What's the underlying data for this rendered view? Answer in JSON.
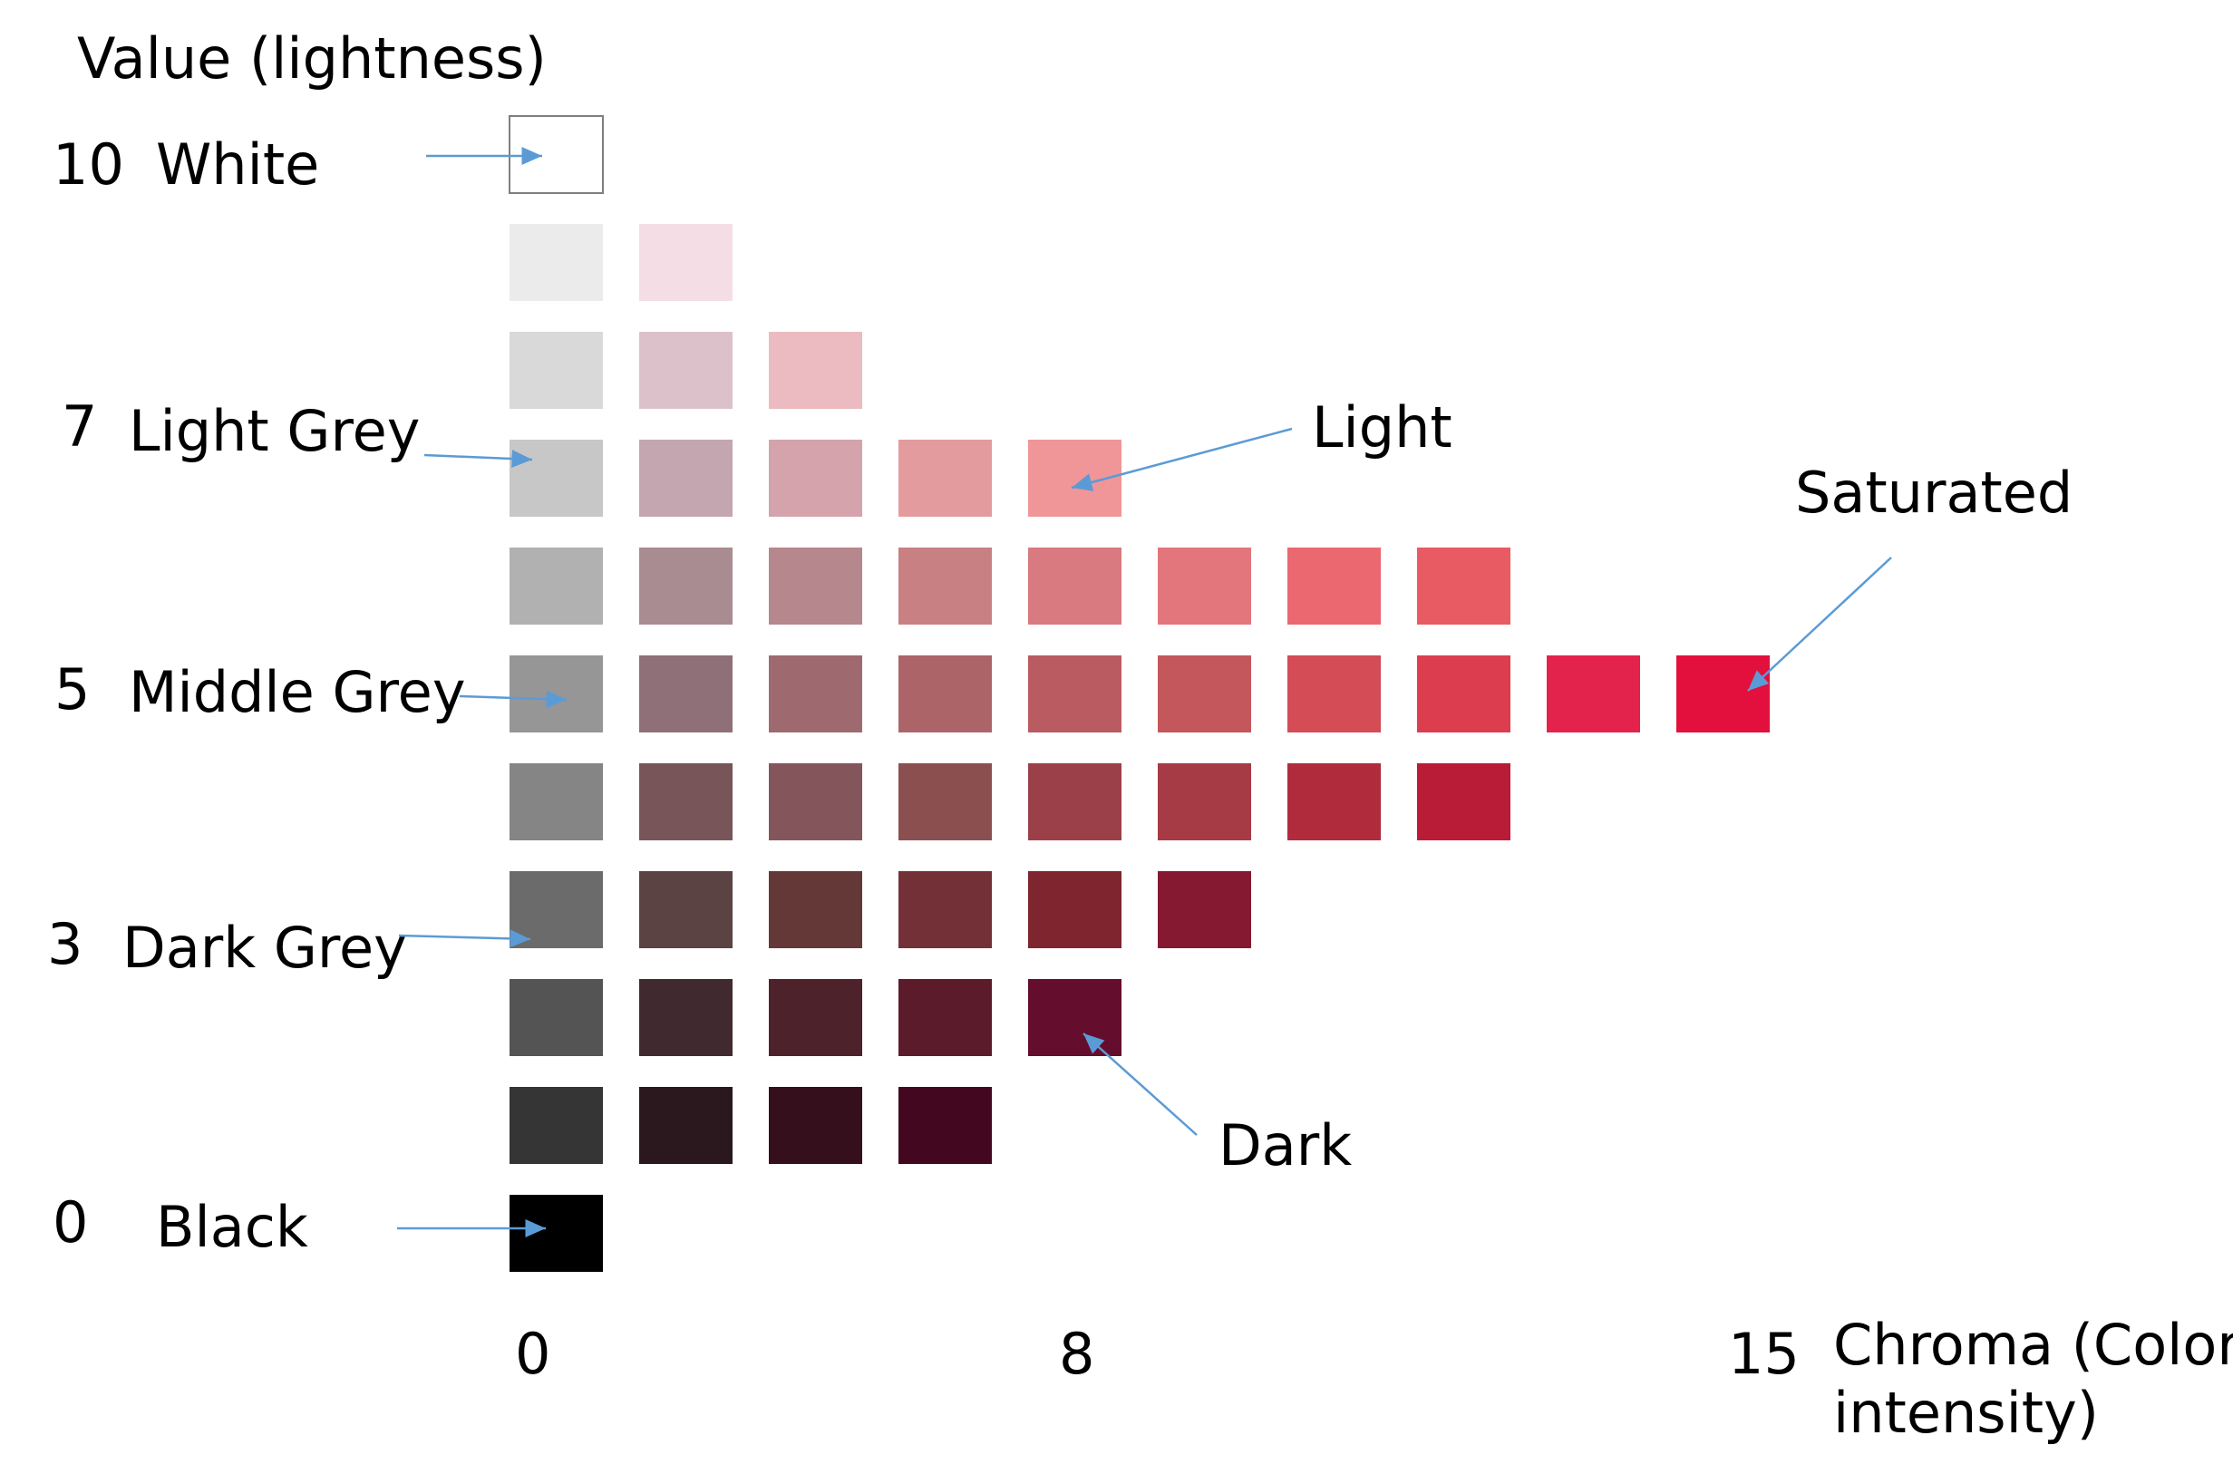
{
  "y_axis_title": "Value (lightness)",
  "x_axis_title_line1": "Chroma (Color",
  "x_axis_title_line2": "intensity)",
  "value_labels": [
    {
      "number": "10",
      "name": "White"
    },
    {
      "number": "7",
      "name": "Light Grey"
    },
    {
      "number": "5",
      "name": "Middle Grey"
    },
    {
      "number": "3",
      "name": "Dark Grey"
    },
    {
      "number": "0",
      "name": "Black"
    }
  ],
  "chroma_ticks": [
    "0",
    "8",
    "15"
  ],
  "annotations": {
    "light": "Light",
    "saturated": "Saturated",
    "dark": "Dark"
  },
  "colors": {
    "arrow": "#5b9bd5"
  },
  "swatch_rows": [
    {
      "value": 10,
      "colors": [
        "#ffffff"
      ]
    },
    {
      "value": 9,
      "colors": [
        "#ebebeb",
        "#f5dde6"
      ]
    },
    {
      "value": 8,
      "colors": [
        "#d9d9d9",
        "#dcc1cb",
        "#ecbac1"
      ]
    },
    {
      "value": 7,
      "colors": [
        "#c7c7c7",
        "#c3a6af",
        "#d4a3ab",
        "#e39b9e",
        "#f09598"
      ]
    },
    {
      "value": 6,
      "colors": [
        "#b1b1b1",
        "#a98c91",
        "#b6878d",
        "#c98083",
        "#d87a7f",
        "#e2767c",
        "#ec6870",
        "#e85b62"
      ]
    },
    {
      "value": 5,
      "colors": [
        "#969696",
        "#8f7078",
        "#9e6a70",
        "#ad6469",
        "#ba5b62",
        "#c4575b",
        "#d34c56",
        "#dc3e4f",
        "#e3234c",
        "#e3103d"
      ]
    },
    {
      "value": 4,
      "colors": [
        "#858585",
        "#785558",
        "#84565b",
        "#8c4f50",
        "#9b4048",
        "#a63a45",
        "#b02c3d",
        "#b91c37"
      ]
    },
    {
      "value": 3,
      "colors": [
        "#6b6b6b",
        "#5b4243",
        "#653838",
        "#733137",
        "#7e252f",
        "#861932"
      ]
    },
    {
      "value": 2,
      "colors": [
        "#545454",
        "#402a30",
        "#4e222b",
        "#5c1b2b",
        "#650d2c"
      ]
    },
    {
      "value": 1,
      "colors": [
        "#353535",
        "#2b171e",
        "#35101c",
        "#430820"
      ]
    },
    {
      "value": 0,
      "colors": [
        "#000000"
      ]
    }
  ]
}
